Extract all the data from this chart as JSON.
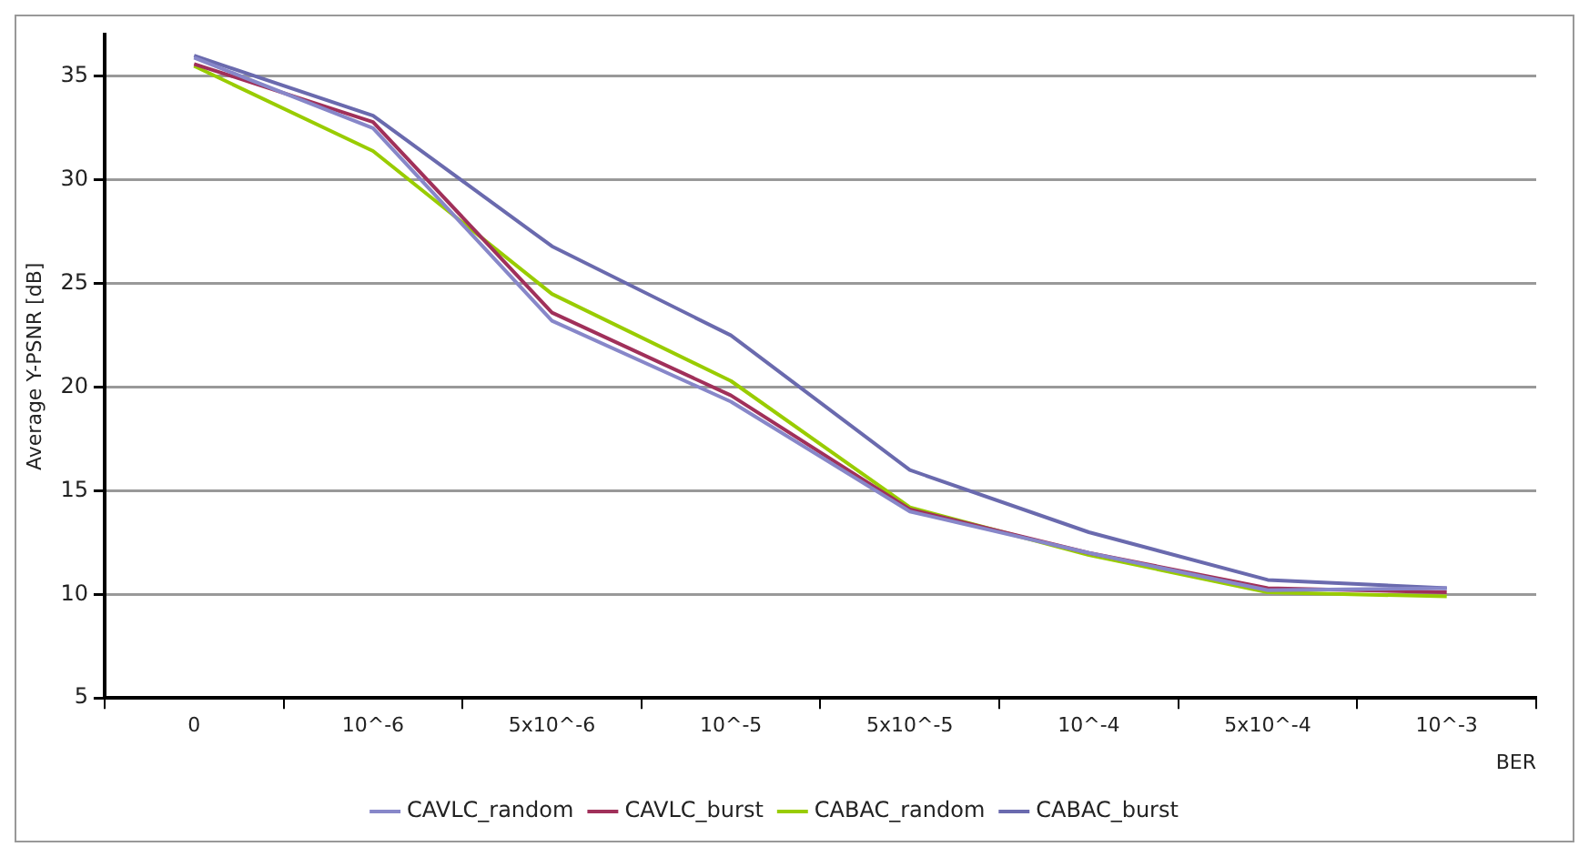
{
  "chart_data": {
    "type": "line",
    "xlabel": "BER",
    "ylabel": "Average Y-PSNR [dB]",
    "categories": [
      "0",
      "10^-6",
      "5x10^-6",
      "10^-5",
      "5x10^-5",
      "10^-4",
      "5x10^-4",
      "10^-3"
    ],
    "series": [
      {
        "name": "CAVLC_random",
        "color": "#8787c9",
        "values": [
          35.9,
          32.5,
          23.2,
          19.3,
          14,
          12,
          10.2,
          10.3
        ]
      },
      {
        "name": "CAVLC_burst",
        "color": "#a0305a",
        "values": [
          35.6,
          32.8,
          23.6,
          19.6,
          14.1,
          12,
          10.3,
          10.1
        ]
      },
      {
        "name": "CABAC_random",
        "color": "#99cc00",
        "values": [
          35.5,
          31.4,
          24.5,
          20.3,
          14.2,
          11.9,
          10.1,
          9.9
        ]
      },
      {
        "name": "CABAC_burst",
        "color": "#6a6aae",
        "values": [
          36,
          33.1,
          26.8,
          22.5,
          16,
          13,
          10.7,
          10.3
        ]
      }
    ],
    "ylim": [
      5,
      37
    ],
    "yticks": [
      5,
      10,
      15,
      20,
      25,
      30,
      35
    ],
    "grid": "y",
    "legend": "bottom",
    "marker": "none",
    "line_style": "solid"
  }
}
